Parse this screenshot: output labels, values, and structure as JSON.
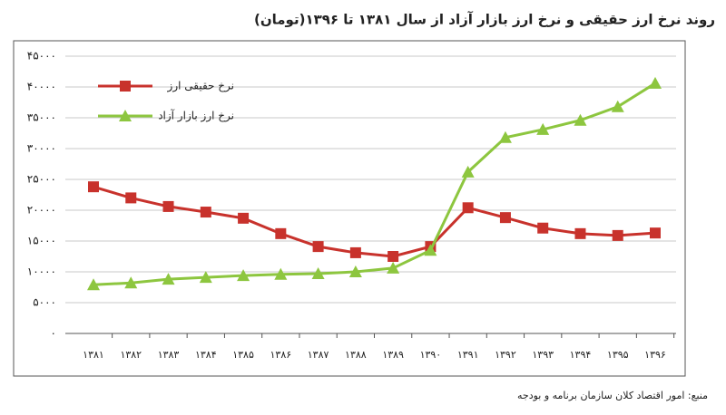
{
  "chart_data": {
    "type": "line",
    "title": "روند نرخ ارز حقیقی و نرخ ارز بازار آزاد از سال ۱۳۸۱ تا ۱۳۹۶(تومان)",
    "source": "منبع: امور اقتصاد کلان سازمان برنامه و بودجه",
    "categories": [
      "۱۳۸۱",
      "۱۳۸۲",
      "۱۳۸۳",
      "۱۳۸۴",
      "۱۳۸۵",
      "۱۳۸۶",
      "۱۳۸۷",
      "۱۳۸۸",
      "۱۳۸۹",
      "۱۳۹۰",
      "۱۳۹۱",
      "۱۳۹۲",
      "۱۳۹۳",
      "۱۳۹۴",
      "۱۳۹۵",
      "۱۳۹۶"
    ],
    "series": [
      {
        "name": "نرخ حقیقی ارز",
        "color": "#c8322c",
        "marker": "square",
        "values": [
          23800,
          22000,
          20600,
          19700,
          18700,
          16200,
          14100,
          13100,
          12500,
          14100,
          20400,
          18800,
          17100,
          16200,
          15900,
          16300
        ]
      },
      {
        "name": "نرخ ارز بازار آزاد",
        "color": "#8dc63f",
        "marker": "triangle",
        "values": [
          7900,
          8200,
          8800,
          9100,
          9400,
          9600,
          9700,
          10000,
          10600,
          13500,
          26200,
          31800,
          33100,
          34600,
          36800,
          40600
        ]
      }
    ],
    "ylim": [
      0,
      45000
    ],
    "yticks": [
      {
        "value": 0,
        "label": "۰"
      },
      {
        "value": 5000,
        "label": "۵۰۰۰"
      },
      {
        "value": 10000,
        "label": "۱۰۰۰۰"
      },
      {
        "value": 15000,
        "label": "۱۵۰۰۰"
      },
      {
        "value": 20000,
        "label": "۲۰۰۰۰"
      },
      {
        "value": 25000,
        "label": "۲۵۰۰۰"
      },
      {
        "value": 30000,
        "label": "۳۰۰۰۰"
      },
      {
        "value": 35000,
        "label": "۳۵۰۰۰"
      },
      {
        "value": 40000,
        "label": "۴۰۰۰۰"
      },
      {
        "value": 45000,
        "label": "۴۵۰۰۰"
      }
    ],
    "grid": true,
    "legend": "upper-left"
  }
}
